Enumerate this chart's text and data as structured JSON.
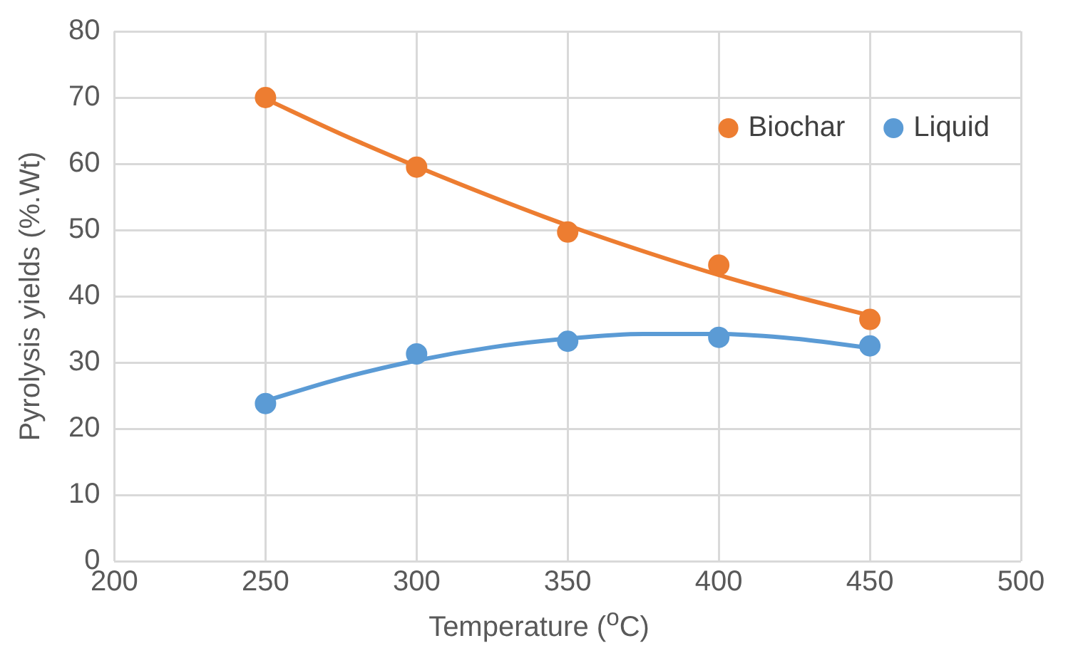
{
  "chart_data": {
    "type": "scatter",
    "xlabel": "Temperature ($^{o}$C)",
    "ylabel": "Pyrolysis yields (%.Wt)",
    "x": [
      250,
      300,
      350,
      400,
      450
    ],
    "series": [
      {
        "name": "Biochar",
        "color": "#ed7d31",
        "values": [
          70,
          59.5,
          49.7,
          44.7,
          36.5
        ]
      },
      {
        "name": "Liquid",
        "color": "#5b9bd5",
        "values": [
          23.8,
          31.3,
          33.2,
          33.8,
          32.5
        ]
      },
      {
        "type": "line",
        "color": "#ed7d31",
        "marker": "none",
        "x": [
          250,
          275,
          300,
          325,
          350,
          375,
          400,
          425,
          450
        ],
        "values": [
          69.8,
          64.5,
          59.6,
          55,
          50.7,
          46.8,
          43.2,
          40,
          37.1
        ]
      },
      {
        "type": "line",
        "color": "#5b9bd5",
        "marker": "none",
        "x": [
          250,
          275,
          300,
          325,
          350,
          375,
          400,
          425,
          450
        ],
        "values": [
          24.2,
          27.6,
          30.3,
          32.3,
          33.6,
          34.3,
          34.3,
          33.6,
          32.2
        ]
      }
    ],
    "xlim": [
      200,
      500
    ],
    "xticks": [
      200,
      250,
      300,
      350,
      400,
      450,
      500
    ],
    "ylim": [
      0,
      80
    ],
    "yticks": [
      0,
      10,
      20,
      30,
      40,
      50,
      60,
      70,
      80
    ],
    "grid": true,
    "legend": "top right",
    "marker": "circle"
  }
}
